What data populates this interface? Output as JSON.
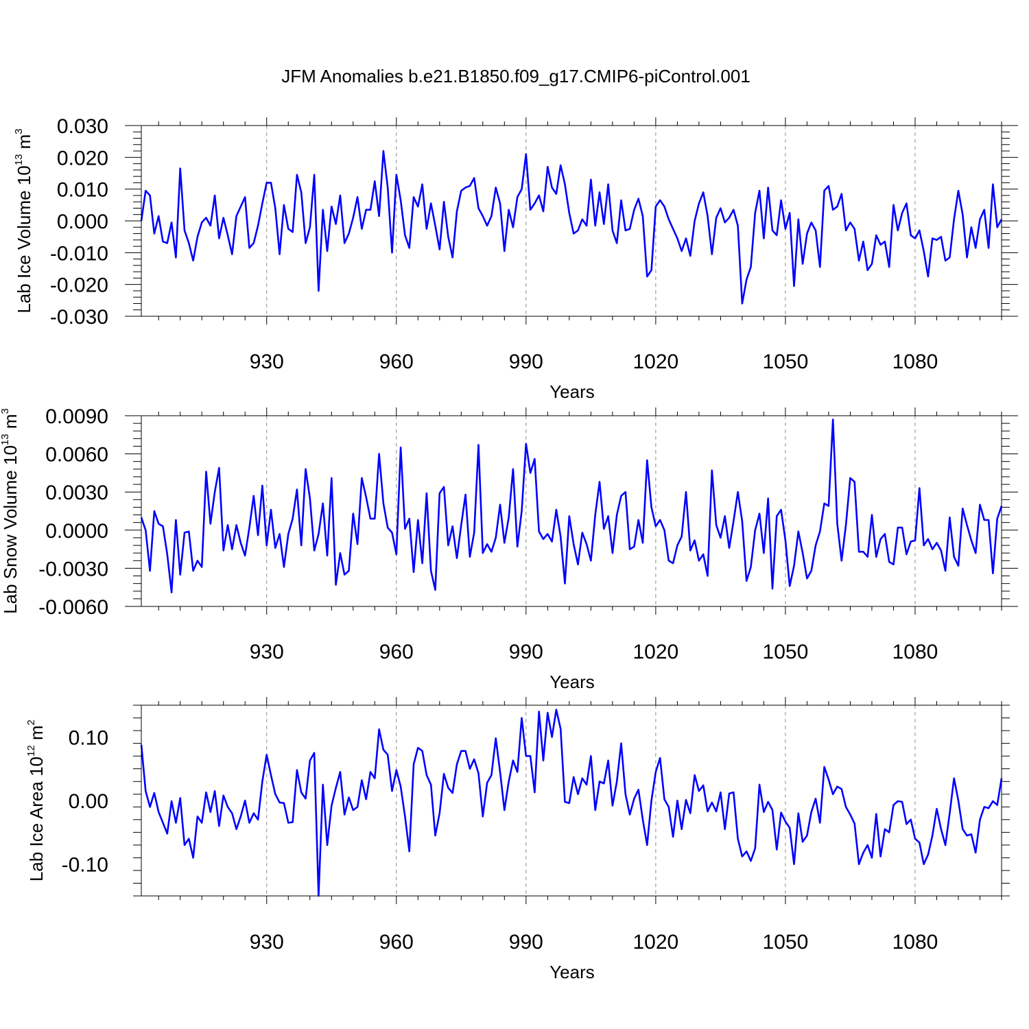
{
  "chart_data": [
    {
      "type": "line",
      "title": "JFM Anomalies b.e21.B1850.f09_g17.CMIP6-piControl.001",
      "ylabel_main": "Lab Ice Volume 10",
      "ylabel_exp": "13",
      "ylabel_unit_main": " m",
      "ylabel_unit_exp": "3",
      "xlabel": "Years",
      "xlim": [
        901,
        1100
      ],
      "ylim": [
        -0.03,
        0.03
      ],
      "xticks": [
        930,
        960,
        990,
        1020,
        1050,
        1080
      ],
      "yticks": [
        -0.03,
        -0.02,
        -0.01,
        0.0,
        0.01,
        0.02,
        0.03
      ],
      "yticklabels": [
        "-0.030",
        "-0.020",
        "-0.010",
        "0.000",
        "0.010",
        "0.020",
        "0.030"
      ],
      "series": [
        {
          "name": "Lab Ice Volume",
          "color": "#0000ff",
          "x_start": 901,
          "values": [
            0.0,
            0.0095,
            0.008,
            -0.004,
            0.0015,
            -0.0065,
            -0.007,
            -0.0005,
            -0.0115,
            0.0165,
            -0.003,
            -0.007,
            -0.0125,
            -0.005,
            -0.0005,
            0.001,
            -0.0015,
            0.008,
            -0.0055,
            0.001,
            -0.0045,
            -0.0105,
            0.0015,
            0.0045,
            0.0075,
            -0.0085,
            -0.007,
            -0.0015,
            0.0055,
            0.012,
            0.012,
            0.004,
            -0.0105,
            0.005,
            -0.0025,
            -0.0035,
            0.0145,
            0.009,
            -0.007,
            -0.002,
            0.0145,
            -0.022,
            0.0035,
            -0.0095,
            0.0045,
            -0.001,
            0.008,
            -0.007,
            -0.004,
            0.001,
            0.0075,
            -0.0025,
            0.0035,
            0.0035,
            0.0125,
            0.0015,
            0.022,
            0.0105,
            -0.01,
            0.0145,
            0.0065,
            -0.0045,
            -0.0085,
            0.0075,
            0.0045,
            0.0115,
            -0.0025,
            0.0055,
            -0.0015,
            -0.009,
            0.006,
            -0.005,
            -0.0115,
            0.003,
            0.0095,
            0.0105,
            0.011,
            0.0135,
            0.004,
            0.0015,
            -0.0015,
            0.0015,
            0.0105,
            0.0055,
            -0.0095,
            0.0035,
            -0.002,
            0.0075,
            0.01,
            0.021,
            0.0035,
            0.0055,
            0.008,
            0.003,
            0.017,
            0.0105,
            0.0085,
            0.0175,
            0.0115,
            0.0025,
            -0.004,
            -0.003,
            0.0005,
            -0.0015,
            0.013,
            -0.0015,
            0.009,
            -0.001,
            0.0115,
            -0.003,
            -0.007,
            0.0065,
            -0.003,
            -0.0025,
            0.0035,
            0.007,
            0.0015,
            -0.0175,
            -0.0155,
            0.0045,
            0.0065,
            0.0045,
            0.0005,
            -0.0025,
            -0.0055,
            -0.0095,
            -0.0055,
            -0.011,
            0.0,
            0.0055,
            0.009,
            0.0015,
            -0.0105,
            0.001,
            0.004,
            -0.0005,
            0.001,
            0.0035,
            -0.0015,
            -0.026,
            -0.0185,
            -0.0145,
            0.0025,
            0.0095,
            -0.0055,
            0.0105,
            -0.003,
            -0.0045,
            0.0065,
            -0.0025,
            0.0025,
            -0.0205,
            0.0005,
            -0.0135,
            -0.004,
            -0.0005,
            -0.003,
            -0.0145,
            0.0095,
            0.011,
            0.0035,
            0.0045,
            0.0085,
            -0.003,
            -0.0005,
            -0.0025,
            -0.0125,
            -0.0065,
            -0.0155,
            -0.0135,
            -0.0045,
            -0.0075,
            -0.0065,
            -0.0145,
            0.005,
            -0.003,
            0.0025,
            0.0055,
            -0.0045,
            -0.0055,
            -0.003,
            -0.0095,
            -0.0175,
            -0.0055,
            -0.006,
            -0.005,
            -0.0125,
            -0.0115,
            0.0005,
            0.0095,
            0.002,
            -0.0115,
            -0.002,
            -0.0085,
            0.0005,
            0.0035,
            -0.0085,
            0.0115,
            -0.002,
            0.0005
          ]
        }
      ]
    },
    {
      "type": "line",
      "ylabel_main": "Lab Snow Volume 10",
      "ylabel_exp": "13",
      "ylabel_unit_main": " m",
      "ylabel_unit_exp": "3",
      "xlabel": "Years",
      "xlim": [
        901,
        1100
      ],
      "ylim": [
        -0.006,
        0.009
      ],
      "xticks": [
        930,
        960,
        990,
        1020,
        1050,
        1080
      ],
      "yticks": [
        -0.006,
        -0.003,
        0.0,
        0.003,
        0.006,
        0.009
      ],
      "yticklabels": [
        "-0.0060",
        "-0.0030",
        "0.0000",
        "0.0030",
        "0.0060",
        "0.0090"
      ],
      "series": [
        {
          "name": "Lab Snow Volume",
          "color": "#0000ff",
          "x_start": 901,
          "values": [
            0.001,
            0.0,
            -0.0032,
            0.0015,
            0.0005,
            0.0003,
            -0.0019,
            -0.0049,
            0.0008,
            -0.0035,
            -0.0002,
            -0.0001,
            -0.0032,
            -0.0024,
            -0.0029,
            0.0046,
            0.0005,
            0.003,
            0.0049,
            -0.0016,
            0.0004,
            -0.0015,
            0.0004,
            -0.001,
            -0.002,
            0.0002,
            0.0027,
            -0.0004,
            0.0035,
            -0.0012,
            0.0016,
            -0.0014,
            -0.0003,
            -0.0029,
            -0.0003,
            0.0009,
            0.0032,
            -0.0012,
            0.0048,
            0.0025,
            -0.0016,
            -0.0003,
            0.0021,
            -0.002,
            0.0041,
            -0.0043,
            -0.0018,
            -0.0035,
            -0.0032,
            0.0013,
            -0.0011,
            0.0041,
            0.0026,
            0.0009,
            0.0009,
            0.006,
            0.0021,
            0.0002,
            -0.0002,
            -0.0019,
            0.0065,
            0.0001,
            0.0009,
            -0.0033,
            0.0008,
            -0.0026,
            0.0029,
            -0.0032,
            -0.0047,
            0.0029,
            0.0034,
            -0.0012,
            0.0003,
            -0.0022,
            0.0004,
            0.0028,
            -0.0021,
            -0.0002,
            0.0067,
            -0.0018,
            -0.0011,
            -0.0017,
            -0.0006,
            0.002,
            -0.001,
            0.001,
            0.0048,
            -0.0013,
            0.0015,
            0.0068,
            0.0045,
            0.0056,
            -0.0001,
            -0.0007,
            -0.0003,
            -0.0009,
            0.0016,
            -0.0005,
            -0.0042,
            0.0011,
            -0.0011,
            -0.0027,
            -0.0002,
            -0.0011,
            -0.0024,
            0.0012,
            0.0038,
            0.0001,
            0.0011,
            -0.0018,
            0.0012,
            0.0027,
            0.003,
            -0.0015,
            -0.0013,
            0.0008,
            -0.001,
            0.0055,
            0.0018,
            0.0003,
            0.0008,
            0.0,
            -0.0024,
            -0.0026,
            -0.0012,
            -0.0005,
            0.003,
            -0.0016,
            -0.0008,
            -0.0024,
            -0.0019,
            -0.0036,
            0.0047,
            0.0004,
            -0.0006,
            0.0011,
            -0.0014,
            0.0007,
            0.003,
            0.0007,
            -0.004,
            -0.0029,
            0.0,
            0.0013,
            -0.0018,
            0.0025,
            -0.0046,
            0.0011,
            0.0016,
            -0.0008,
            -0.0044,
            -0.0028,
            -0.0001,
            -0.0018,
            -0.0038,
            -0.0032,
            -0.0012,
            -0.0001,
            0.0021,
            0.0019,
            0.0087,
            0.0005,
            -0.0024,
            0.0004,
            0.0041,
            0.0038,
            -0.0017,
            -0.0017,
            -0.0021,
            0.0012,
            -0.0021,
            -0.0007,
            -0.0003,
            -0.0025,
            -0.0027,
            0.0002,
            0.0002,
            -0.0019,
            -0.0009,
            -0.0008,
            0.0033,
            -0.0012,
            -0.0007,
            -0.0015,
            -0.001,
            -0.0016,
            -0.0032,
            0.001,
            -0.0021,
            -0.0028,
            0.0017,
            0.0004,
            -0.0008,
            -0.0018,
            0.002,
            0.0008,
            0.0008,
            -0.0034,
            0.0009,
            0.0019
          ]
        }
      ]
    },
    {
      "type": "line",
      "ylabel_main": "Lab Ice Area 10",
      "ylabel_exp": "12",
      "ylabel_unit_main": " m",
      "ylabel_unit_exp": "2",
      "xlabel": "Years",
      "xlim": [
        901,
        1100
      ],
      "ylim": [
        -0.15,
        0.15
      ],
      "xticks": [
        930,
        960,
        990,
        1020,
        1050,
        1080
      ],
      "yticks": [
        -0.1,
        0.0,
        0.1
      ],
      "yticklabels": [
        "-0.10",
        "0.00",
        "0.10"
      ],
      "series": [
        {
          "name": "Lab Ice Area",
          "color": "#0000ff",
          "x_start": 901,
          "values": [
            0.088,
            0.015,
            -0.01,
            0.012,
            -0.018,
            -0.035,
            -0.052,
            -0.001,
            -0.035,
            0.004,
            -0.07,
            -0.06,
            -0.09,
            -0.025,
            -0.035,
            0.013,
            -0.018,
            0.015,
            -0.04,
            0.008,
            -0.01,
            -0.02,
            -0.045,
            -0.025,
            0.0,
            -0.035,
            -0.02,
            -0.03,
            0.03,
            0.072,
            0.04,
            0.01,
            -0.003,
            -0.004,
            -0.035,
            -0.034,
            0.048,
            0.013,
            0.003,
            0.063,
            0.075,
            -0.15,
            0.025,
            -0.07,
            -0.008,
            0.02,
            0.045,
            -0.022,
            0.005,
            -0.015,
            -0.01,
            0.032,
            0.002,
            0.045,
            0.035,
            0.112,
            0.08,
            0.072,
            0.015,
            0.048,
            0.022,
            -0.025,
            -0.08,
            0.057,
            0.083,
            0.078,
            0.04,
            0.025,
            -0.055,
            -0.02,
            0.042,
            0.02,
            0.012,
            0.057,
            0.078,
            0.078,
            0.05,
            0.065,
            0.043,
            -0.025,
            0.028,
            0.04,
            0.098,
            0.045,
            -0.015,
            0.03,
            0.063,
            0.045,
            0.13,
            0.07,
            0.07,
            0.013,
            0.14,
            0.063,
            0.138,
            0.1,
            0.143,
            0.113,
            -0.002,
            -0.004,
            0.037,
            0.01,
            0.035,
            0.025,
            0.07,
            -0.015,
            0.03,
            0.027,
            0.063,
            -0.008,
            0.03,
            0.09,
            0.01,
            -0.022,
            0.003,
            0.017,
            -0.03,
            -0.07,
            0.0,
            0.045,
            0.067,
            0.002,
            -0.01,
            -0.057,
            0.0,
            -0.045,
            0.001,
            -0.02,
            0.04,
            0.015,
            0.024,
            -0.017,
            -0.003,
            -0.017,
            0.013,
            -0.045,
            0.011,
            0.013,
            -0.06,
            -0.088,
            -0.08,
            -0.095,
            -0.075,
            0.025,
            -0.018,
            -0.002,
            -0.015,
            -0.077,
            -0.019,
            -0.033,
            -0.043,
            -0.1,
            -0.02,
            -0.065,
            -0.055,
            -0.018,
            0.003,
            -0.035,
            0.053,
            0.033,
            0.01,
            0.022,
            0.018,
            -0.01,
            -0.022,
            -0.036,
            -0.1,
            -0.082,
            -0.07,
            -0.09,
            -0.021,
            -0.088,
            -0.045,
            -0.05,
            -0.007,
            -0.001,
            -0.002,
            -0.037,
            -0.03,
            -0.06,
            -0.066,
            -0.1,
            -0.085,
            -0.055,
            -0.013,
            -0.045,
            -0.07,
            -0.02,
            0.035,
            0.0,
            -0.045,
            -0.055,
            -0.053,
            -0.082,
            -0.03,
            -0.01,
            -0.012,
            -0.001,
            -0.007,
            0.035
          ]
        }
      ]
    }
  ]
}
